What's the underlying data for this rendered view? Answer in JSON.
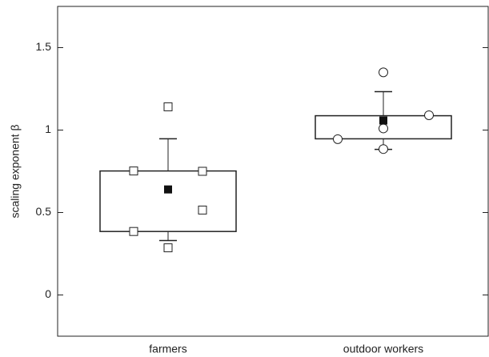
{
  "chart_data": {
    "type": "box",
    "ylabel": "scaling exponent β",
    "categories": [
      "farmers",
      "outdoor workers"
    ],
    "ylim": [
      -0.25,
      1.75
    ],
    "yticks": [
      0.0,
      0.5,
      1.0,
      1.5
    ],
    "boxes": [
      {
        "q1": 0.385,
        "q3": 0.752,
        "mean": 0.64,
        "whisker_low": 0.33,
        "whisker_high": 0.947,
        "marker": "square",
        "points": [
          0.752,
          0.75,
          1.141,
          0.515,
          0.385,
          0.286
        ]
      },
      {
        "q1": 0.947,
        "q3": 1.087,
        "mean": 1.058,
        "whisker_low": 0.883,
        "whisker_high": 1.233,
        "marker": "circle",
        "points": [
          1.35,
          1.09,
          0.945,
          1.01,
          0.885
        ]
      }
    ]
  }
}
